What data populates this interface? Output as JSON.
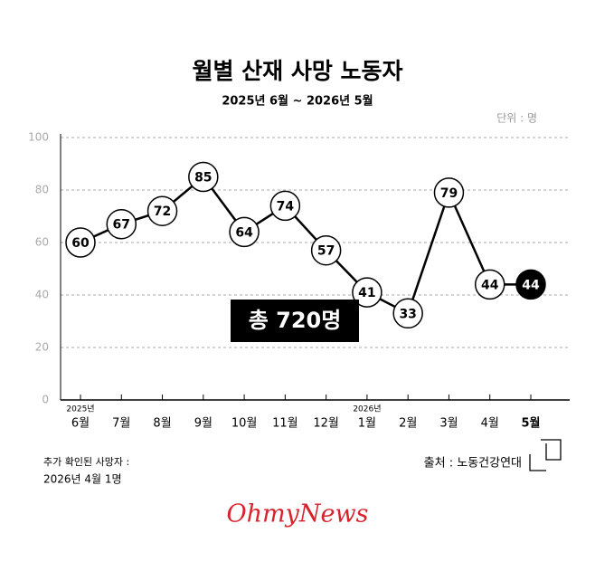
{
  "chart_data": {
    "type": "line",
    "title": "월별 산재 사망 노동자",
    "subtitle": "2025년 6월 ~ 2026년 5월",
    "unit_label": "단위 : 명",
    "categories": [
      "6월",
      "7월",
      "8월",
      "9월",
      "10월",
      "11월",
      "12월",
      "1월",
      "2월",
      "3월",
      "4월",
      "5월"
    ],
    "year_labels": [
      "2025년",
      null,
      null,
      null,
      null,
      null,
      null,
      "2026년",
      null,
      null,
      null,
      null
    ],
    "series": [
      {
        "name": "사망 노동자",
        "color": "#000000",
        "values": [
          60,
          67,
          72,
          85,
          64,
          74,
          57,
          41,
          33,
          79,
          44,
          44
        ],
        "point_colors": [
          "#ffffff",
          "#ffffff",
          "#ffffff",
          "#ffffff",
          "#ffffff",
          "#ffffff",
          "#ffffff",
          "#ffffff",
          "#ffffff",
          "#ffffff",
          "#ffffff",
          "#000000"
        ]
      }
    ],
    "ylim": [
      0,
      100
    ],
    "yticks": [
      0,
      20,
      40,
      60,
      80,
      100
    ],
    "grid": true,
    "annotation": "총 720명",
    "footnote": [
      "추가 확인된 사망자 :",
      "2026년 4월 1명"
    ],
    "source": "출처 : 노동건강연대",
    "logo": "OhmyNews"
  }
}
